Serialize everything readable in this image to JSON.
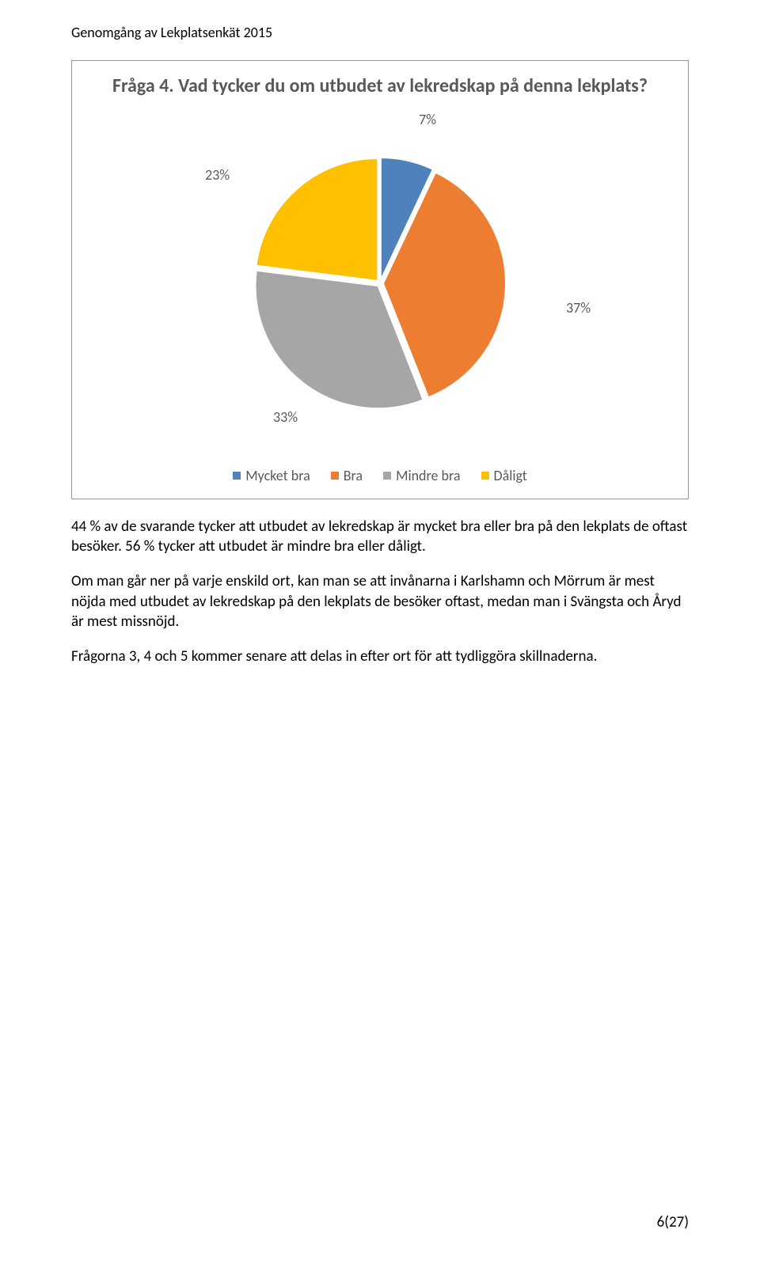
{
  "doc_header": "Genomgång av Lekplatsenkät 2015",
  "chart": {
    "title": "Fråga 4. Vad tycker du om utbudet av lekredskap på denna lekplats?",
    "type": "pie",
    "slices": [
      {
        "label": "Mycket bra",
        "value": 7,
        "pct_text": "7%",
        "color": "#4f81bd"
      },
      {
        "label": "Bra",
        "value": 37,
        "pct_text": "37%",
        "color": "#ed7d31"
      },
      {
        "label": "Mindre bra",
        "value": 33,
        "pct_text": "33%",
        "color": "#a6a6a6"
      },
      {
        "label": "Dåligt",
        "value": 23,
        "pct_text": "23%",
        "color": "#ffc000"
      }
    ],
    "legend_colors": [
      "#4f81bd",
      "#ed7d31",
      "#a6a6a6",
      "#ffc000"
    ],
    "pie_gap_color": "#ffffff",
    "title_color": "#595959",
    "label_color": "#595959"
  },
  "paragraphs": [
    "44 % av de svarande tycker att utbudet av lekredskap är mycket bra eller bra på den lekplats de oftast besöker. 56 % tycker att utbudet är mindre bra eller dåligt.",
    "Om man går ner på varje enskild ort, kan man se att invånarna i Karlshamn och Mörrum är mest nöjda med utbudet av lekredskap på den lekplats de besöker oftast, medan man i Svängsta och Åryd är mest missnöjd.",
    "Frågorna 3, 4 och 5 kommer senare att delas in efter ort för att tydliggöra skillnaderna."
  ],
  "page_number": "6(27)"
}
